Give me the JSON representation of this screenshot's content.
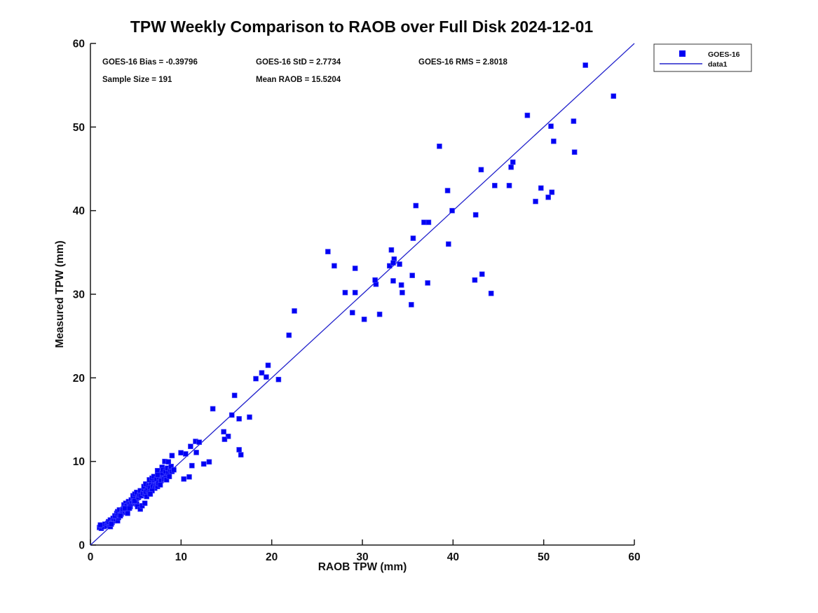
{
  "title": "TPW Weekly Comparison to RAOB over Full Disk 2024-12-01",
  "stats": {
    "bias": "GOES-16 Bias = -0.39796",
    "std": "GOES-16 StD = 2.7734",
    "rms": "GOES-16 RMS = 2.8018",
    "sample_size": "Sample Size = 191",
    "mean_raob": "Mean RAOB = 15.5204"
  },
  "legend": {
    "items": [
      {
        "label": "GOES-16",
        "marker": "square"
      },
      {
        "label": "data1",
        "marker": "line"
      }
    ]
  },
  "colors": {
    "marker_fill": "#0202f2",
    "marker_edge": "#4d4dff",
    "line": "#2222cc",
    "axis": "#1a1a1a",
    "text": "#111111"
  },
  "chart_data": {
    "type": "scatter",
    "title": "TPW Weekly Comparison to RAOB over Full Disk 2024-12-01",
    "xlabel": "RAOB TPW (mm)",
    "ylabel": "Measured TPW (mm)",
    "xlim": [
      0,
      60
    ],
    "ylim": [
      0,
      60
    ],
    "xticks": [
      0,
      10,
      20,
      30,
      40,
      50,
      60
    ],
    "yticks": [
      0,
      10,
      20,
      30,
      40,
      50,
      60
    ],
    "grid": false,
    "legend_position": "top-right-outside",
    "annotations": [
      "GOES-16 Bias = -0.39796",
      "GOES-16 StD = 2.7734",
      "GOES-16 RMS = 2.8018",
      "Sample Size = 191",
      "Mean RAOB = 15.5204"
    ],
    "series": [
      {
        "name": "GOES-16",
        "type": "scatter",
        "marker": "square",
        "color": "#0202f2",
        "points": [
          [
            54.6,
            57.4
          ],
          [
            57.7,
            53.7
          ],
          [
            48.2,
            51.4
          ],
          [
            53.3,
            50.7
          ],
          [
            50.8,
            50.1
          ],
          [
            51.1,
            48.3
          ],
          [
            53.4,
            47.0
          ],
          [
            46.6,
            45.8
          ],
          [
            46.4,
            45.2
          ],
          [
            44.6,
            43.0
          ],
          [
            46.2,
            43.0
          ],
          [
            49.7,
            42.7
          ],
          [
            50.9,
            42.2
          ],
          [
            50.5,
            41.6
          ],
          [
            49.1,
            41.1
          ],
          [
            38.5,
            47.7
          ],
          [
            43.1,
            44.9
          ],
          [
            39.4,
            42.4
          ],
          [
            35.9,
            40.6
          ],
          [
            39.9,
            40.0
          ],
          [
            42.5,
            39.5
          ],
          [
            36.8,
            38.6
          ],
          [
            37.3,
            38.6
          ],
          [
            35.6,
            36.7
          ],
          [
            39.5,
            36.0
          ],
          [
            42.4,
            31.7
          ],
          [
            43.2,
            32.4
          ],
          [
            26.2,
            35.1
          ],
          [
            33.2,
            35.3
          ],
          [
            33.5,
            34.2
          ],
          [
            33.0,
            33.4
          ],
          [
            33.4,
            33.75
          ],
          [
            34.1,
            33.6
          ],
          [
            26.9,
            33.4
          ],
          [
            29.2,
            33.1
          ],
          [
            35.5,
            32.25
          ],
          [
            33.4,
            31.6
          ],
          [
            31.5,
            31.2
          ],
          [
            31.4,
            31.7
          ],
          [
            34.3,
            31.1
          ],
          [
            34.4,
            30.2
          ],
          [
            28.1,
            30.2
          ],
          [
            29.2,
            30.2
          ],
          [
            35.4,
            28.75
          ],
          [
            22.5,
            28.0
          ],
          [
            28.9,
            27.8
          ],
          [
            30.2,
            27.0
          ],
          [
            31.9,
            27.6
          ],
          [
            21.9,
            25.1
          ],
          [
            19.6,
            21.5
          ],
          [
            37.2,
            31.35
          ],
          [
            44.2,
            30.1
          ],
          [
            18.9,
            20.6
          ],
          [
            19.4,
            20.1
          ],
          [
            18.25,
            19.9
          ],
          [
            20.75,
            19.8
          ],
          [
            15.9,
            17.9
          ],
          [
            13.5,
            16.3
          ],
          [
            15.6,
            15.55
          ],
          [
            16.4,
            15.1
          ],
          [
            17.55,
            15.3
          ],
          [
            14.7,
            13.55
          ],
          [
            15.2,
            13.0
          ],
          [
            14.8,
            12.65
          ],
          [
            16.4,
            11.4
          ],
          [
            16.6,
            10.8
          ],
          [
            13.1,
            9.95
          ],
          [
            12.5,
            9.7
          ],
          [
            11.2,
            9.5
          ],
          [
            10.9,
            8.15
          ],
          [
            10.3,
            7.9
          ],
          [
            11.6,
            12.4
          ],
          [
            12.0,
            12.3
          ],
          [
            11.05,
            11.8
          ],
          [
            11.68,
            11.07
          ],
          [
            10.5,
            10.9
          ],
          [
            9.98,
            11.04
          ],
          [
            9.0,
            10.7
          ],
          [
            8.2,
            10.0
          ],
          [
            8.6,
            9.95
          ],
          [
            7.9,
            9.3
          ],
          [
            7.4,
            8.9
          ],
          [
            1.0,
            2.1
          ],
          [
            1.2,
            2.0
          ],
          [
            1.3,
            2.3
          ],
          [
            1.5,
            2.2
          ],
          [
            1.6,
            2.5
          ],
          [
            1.8,
            2.3
          ],
          [
            1.9,
            2.6
          ],
          [
            2.1,
            2.4
          ],
          [
            2.2,
            2.2
          ],
          [
            1.1,
            2.4
          ],
          [
            2.0,
            2.8
          ],
          [
            2.2,
            3.0
          ],
          [
            2.4,
            2.7
          ],
          [
            2.5,
            3.2
          ],
          [
            2.6,
            2.9
          ],
          [
            2.8,
            3.1
          ],
          [
            2.9,
            3.4
          ],
          [
            3.0,
            2.9
          ],
          [
            3.1,
            3.3
          ],
          [
            2.3,
            2.5
          ],
          [
            2.7,
            3.5
          ],
          [
            3.2,
            3.6
          ],
          [
            2.9,
            3.8
          ],
          [
            3.0,
            4.0
          ],
          [
            3.2,
            4.2
          ],
          [
            3.4,
            3.7
          ],
          [
            3.5,
            4.1
          ],
          [
            3.6,
            3.9
          ],
          [
            3.7,
            4.4
          ],
          [
            3.8,
            4.0
          ],
          [
            3.9,
            4.6
          ],
          [
            4.0,
            4.2
          ],
          [
            4.1,
            3.8
          ],
          [
            4.2,
            4.5
          ],
          [
            3.3,
            3.5
          ],
          [
            3.6,
            4.3
          ],
          [
            3.7,
            4.8
          ],
          [
            3.9,
            5.0
          ],
          [
            4.0,
            4.7
          ],
          [
            4.2,
            5.2
          ],
          [
            4.3,
            4.9
          ],
          [
            4.5,
            5.4
          ],
          [
            4.6,
            5.0
          ],
          [
            4.7,
            5.6
          ],
          [
            4.8,
            5.2
          ],
          [
            5.0,
            5.5
          ],
          [
            5.1,
            4.9
          ],
          [
            5.2,
            5.8
          ],
          [
            4.4,
            4.6
          ],
          [
            4.9,
            5.3
          ],
          [
            3.8,
            4.4
          ],
          [
            4.3,
            4.4
          ],
          [
            4.7,
            5.9
          ],
          [
            4.9,
            6.1
          ],
          [
            5.1,
            6.3
          ],
          [
            5.3,
            5.7
          ],
          [
            5.4,
            6.0
          ],
          [
            5.5,
            6.5
          ],
          [
            5.6,
            5.9
          ],
          [
            5.8,
            6.2
          ],
          [
            5.9,
            6.7
          ],
          [
            6.0,
            6.1
          ],
          [
            6.1,
            6.4
          ],
          [
            6.3,
            6.8
          ],
          [
            5.2,
            4.6
          ],
          [
            5.5,
            4.3
          ],
          [
            5.7,
            4.7
          ],
          [
            6.0,
            5.0
          ],
          [
            5.9,
            7.0
          ],
          [
            6.1,
            7.3
          ],
          [
            6.3,
            6.6
          ],
          [
            6.4,
            7.1
          ],
          [
            6.6,
            6.9
          ],
          [
            6.7,
            7.4
          ],
          [
            6.9,
            7.0
          ],
          [
            7.0,
            7.6
          ],
          [
            7.1,
            6.8
          ],
          [
            7.3,
            7.2
          ],
          [
            6.5,
            6.3
          ],
          [
            6.8,
            6.5
          ],
          [
            7.2,
            7.7
          ],
          [
            7.4,
            7.0
          ],
          [
            6.2,
            5.8
          ],
          [
            6.6,
            6.1
          ],
          [
            6.9,
            7.8
          ],
          [
            6.5,
            7.8
          ],
          [
            6.8,
            8.0
          ],
          [
            7.0,
            8.2
          ],
          [
            7.3,
            7.9
          ],
          [
            7.5,
            7.4
          ],
          [
            7.6,
            8.1
          ],
          [
            7.8,
            7.7
          ],
          [
            8.0,
            8.3
          ],
          [
            8.1,
            7.9
          ],
          [
            8.2,
            8.5
          ],
          [
            7.7,
            7.2
          ],
          [
            7.9,
            8.6
          ],
          [
            8.3,
            8.0
          ],
          [
            7.4,
            8.4
          ],
          [
            8.0,
            9.0
          ],
          [
            8.3,
            8.8
          ],
          [
            8.5,
            9.2
          ],
          [
            8.6,
            8.6
          ],
          [
            8.8,
            9.0
          ],
          [
            9.0,
            8.8
          ],
          [
            8.4,
            7.8
          ],
          [
            8.7,
            8.2
          ],
          [
            8.9,
            9.4
          ],
          [
            9.2,
            9.0
          ]
        ]
      },
      {
        "name": "data1",
        "type": "line",
        "color": "#2222cc",
        "points": [
          [
            0,
            0
          ],
          [
            60,
            60
          ]
        ]
      }
    ]
  }
}
